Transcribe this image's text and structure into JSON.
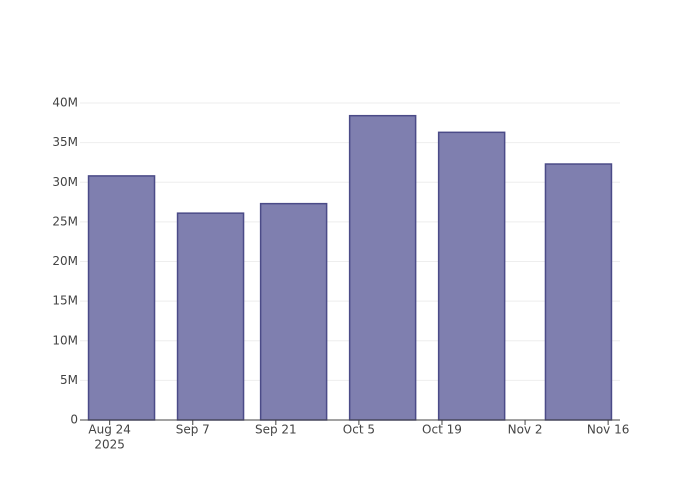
{
  "chart_data": {
    "type": "bar",
    "x": [
      "2025-08-26",
      "2025-09-10",
      "2025-09-24",
      "2025-10-09",
      "2025-10-24",
      "2025-11-11"
    ],
    "values": [
      30800000,
      26100000,
      27300000,
      38400000,
      36300000,
      32300000
    ],
    "color": "#7f7faf",
    "edge_color": "#4b4b88",
    "xlim": [
      "2025-08-19",
      "2025-11-18"
    ],
    "xticks": [
      {
        "value": "2025-08-24",
        "label": "Aug 24"
      },
      {
        "value": "2025-09-07",
        "label": "Sep 7"
      },
      {
        "value": "2025-09-21",
        "label": "Sep 21"
      },
      {
        "value": "2025-10-05",
        "label": "Oct 5"
      },
      {
        "value": "2025-10-19",
        "label": "Oct 19"
      },
      {
        "value": "2025-11-02",
        "label": "Nov 2"
      },
      {
        "value": "2025-11-16",
        "label": "Nov 16"
      }
    ],
    "x_year_label": "2025",
    "ylim": [
      0,
      40000000
    ],
    "yticks": [
      0,
      {
        "value": 5000000,
        "label": "5M"
      },
      {
        "value": 10000000,
        "label": "10M"
      },
      {
        "value": 15000000,
        "label": "15M"
      },
      {
        "value": 20000000,
        "label": "20M"
      },
      {
        "value": 25000000,
        "label": "25M"
      },
      {
        "value": 30000000,
        "label": "30M"
      },
      {
        "value": 35000000,
        "label": "35M"
      },
      {
        "value": 40000000,
        "label": "40M"
      }
    ],
    "grid": true
  }
}
